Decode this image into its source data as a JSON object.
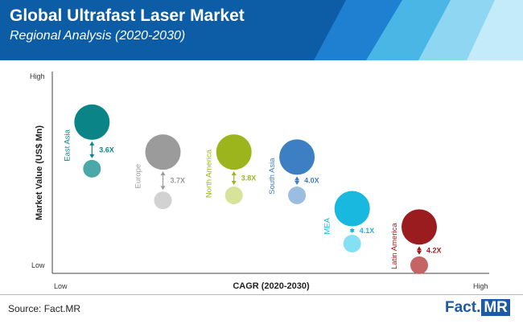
{
  "header": {
    "title": "Global Ultrafast Laser Market",
    "subtitle": "Regional Analysis (2020-2030)",
    "colors": {
      "primary": "#0d5ca6",
      "band1": "#1f7fd0",
      "band2": "#49b6e6",
      "band3": "#8fd6f3"
    }
  },
  "chart_data": {
    "type": "bubble",
    "title": "Global Ultrafast Laser Market",
    "subtitle": "Regional Analysis (2020-2030)",
    "xlabel": "CAGR (2020-2030)",
    "ylabel": "Market Value (US$ Mn)",
    "x_ticks": {
      "low": "Low",
      "high": "High"
    },
    "y_ticks": {
      "low": "Low",
      "high": "High"
    },
    "xlim": [
      0,
      100
    ],
    "ylim": [
      0,
      100
    ],
    "series": [
      {
        "region": "East Asia",
        "ratio": "3.6X",
        "color": "#0a8486",
        "light_color": "#4aa8a9",
        "x": 7,
        "y2030": 87,
        "y2020": 59,
        "size2030": 22,
        "size2020": 11
      },
      {
        "region": "Europe",
        "ratio": "3.7X",
        "color": "#9b9b9b",
        "light_color": "#d2d2d2",
        "x": 25,
        "y2030": 69,
        "y2020": 40,
        "size2030": 22,
        "size2020": 11
      },
      {
        "region": "North America",
        "ratio": "3.8X",
        "color": "#9cb51c",
        "light_color": "#d7e29a",
        "x": 43,
        "y2030": 69,
        "y2020": 43,
        "size2030": 22,
        "size2020": 11
      },
      {
        "region": "South Asia",
        "ratio": "4.0X",
        "color": "#3c7fc3",
        "light_color": "#9bbde2",
        "x": 59,
        "y2030": 66,
        "y2020": 43,
        "size2030": 22,
        "size2020": 11
      },
      {
        "region": "MEA",
        "ratio": "4.1X",
        "color": "#19b8df",
        "light_color": "#86e0f4",
        "x": 73,
        "y2030": 35,
        "y2020": 14,
        "size2030": 22,
        "size2020": 11
      },
      {
        "region": "Latin America",
        "ratio": "4.2X",
        "color": "#9a1c1e",
        "light_color": "#c46465",
        "x": 90,
        "y2030": 24,
        "y2020": 1,
        "size2030": 22,
        "size2020": 11
      }
    ]
  },
  "footer": {
    "source": "Source: Fact.MR",
    "logo_main": "Fact.",
    "logo_accent": "MR"
  }
}
